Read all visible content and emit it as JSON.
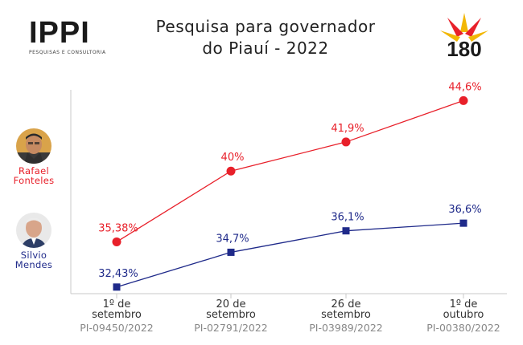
{
  "header": {
    "logo_left_name": "IPPI",
    "logo_left_sub": "PESQUISAS E CONSULTORIA",
    "title_line1": "Pesquisa para governador",
    "title_line2": "do Piauí - 2022",
    "logo_right_text": "180"
  },
  "candidates": [
    {
      "name_line1": "Rafael",
      "name_line2": "Fonteles",
      "color": "#e8202a"
    },
    {
      "name_line1": "Silvio",
      "name_line2": "Mendes",
      "color": "#1f2a8a"
    }
  ],
  "chart_data": {
    "type": "line",
    "categories": [
      {
        "line1": "1º de",
        "line2": "setembro",
        "code": "PI-09450/2022"
      },
      {
        "line1": "20 de",
        "line2": "setembro",
        "code": "PI-02791/2022"
      },
      {
        "line1": "26 de",
        "line2": "setembro",
        "code": "PI-03989/2022"
      },
      {
        "line1": "1º de",
        "line2": "outubro",
        "code": "PI-00380/2022"
      }
    ],
    "series": [
      {
        "name": "Rafael Fonteles",
        "color": "#e8202a",
        "marker": "circle",
        "values": [
          35.38,
          40.0,
          41.9,
          44.6
        ],
        "labels": [
          "35,38%",
          "40%",
          "41,9%",
          "44,6%"
        ]
      },
      {
        "name": "Silvio Mendes",
        "color": "#1f2a8a",
        "marker": "square",
        "values": [
          32.43,
          34.7,
          36.1,
          36.6
        ],
        "labels": [
          "32,43%",
          "34,7%",
          "36,1%",
          "36,6%"
        ]
      }
    ],
    "ylim": [
      32.0,
      45.3
    ]
  }
}
